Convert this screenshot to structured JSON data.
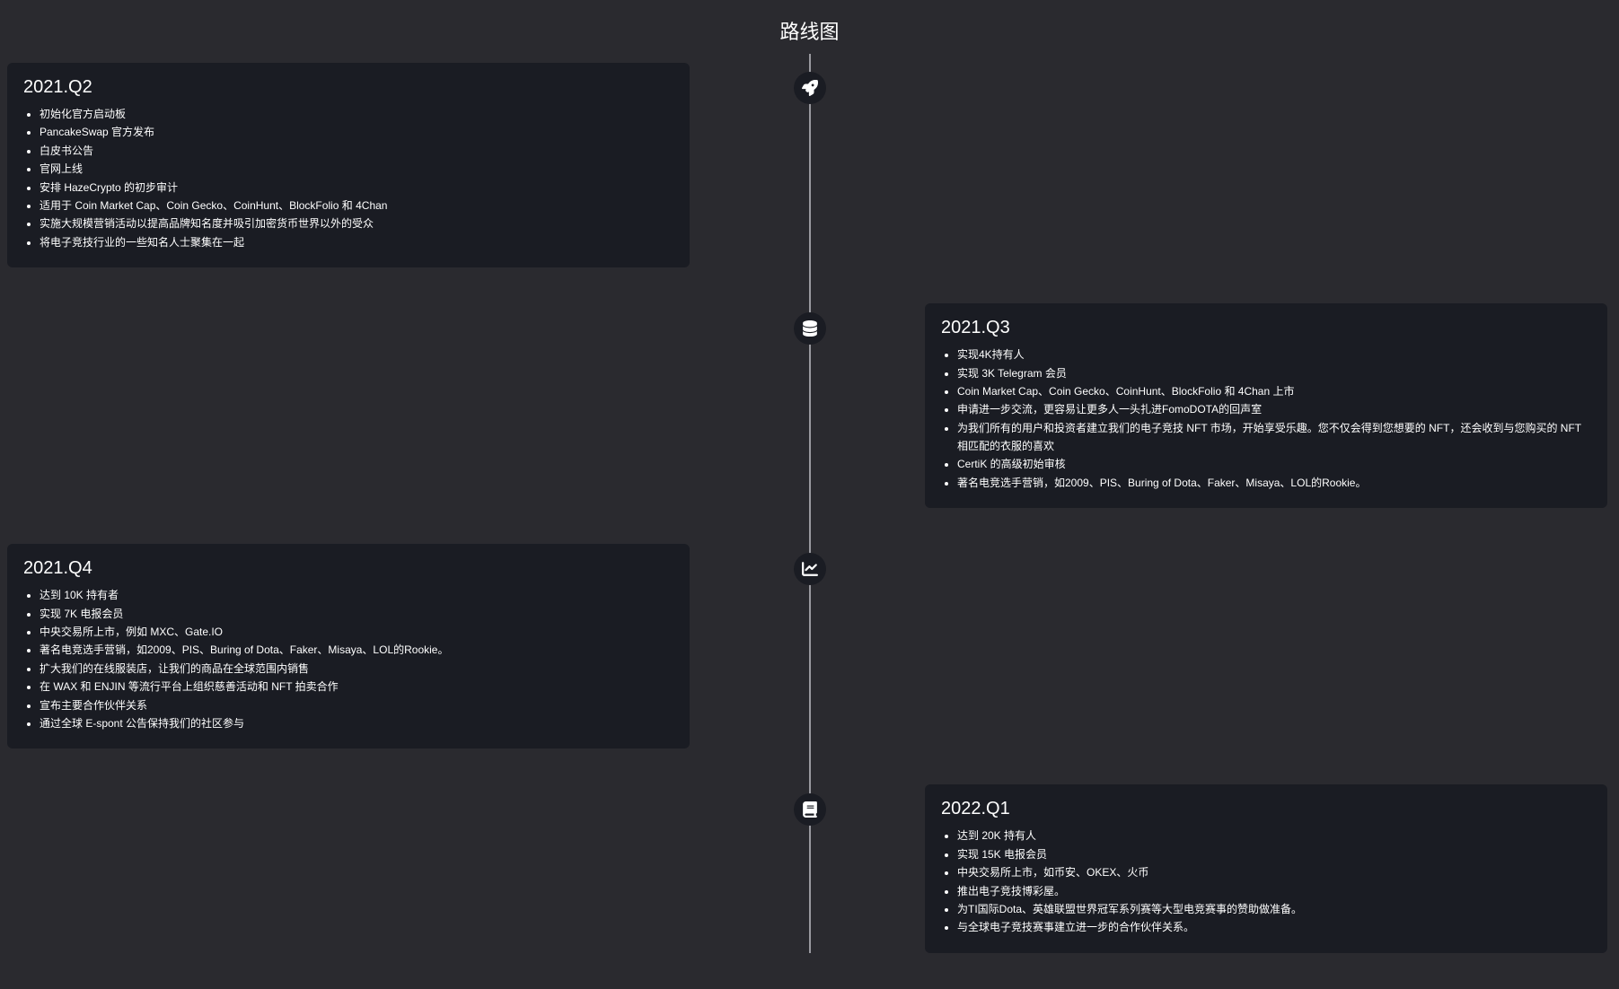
{
  "page_title": "路线图",
  "colors": {
    "background": "#2a2a2f",
    "card_background": "#1a1c23",
    "icon_background": "#1a1c23",
    "text": "#ffffff",
    "line": "#9a9aa0"
  },
  "timeline": [
    {
      "side": "left",
      "icon": "rocket",
      "title": "2021.Q2",
      "items": [
        "初始化官方启动板",
        "PancakeSwap 官方发布",
        "白皮书公告",
        "官网上线",
        "安排 HazeCrypto 的初步审计",
        "适用于 Coin Market Cap、Coin Gecko、CoinHunt、BlockFolio 和 4Chan",
        "实施大规模营销活动以提高品牌知名度并吸引加密货币世界以外的受众",
        "将电子竞技行业的一些知名人士聚集在一起"
      ]
    },
    {
      "side": "right",
      "icon": "database",
      "title": "2021.Q3",
      "items": [
        "实现4K持有人",
        "实现 3K Telegram 会员",
        "Coin Market Cap、Coin Gecko、CoinHunt、BlockFolio 和 4Chan 上市",
        "申请进一步交流，更容易让更多人一头扎进FomoDOTA的回声室",
        "为我们所有的用户和投资者建立我们的电子竞技 NFT 市场，开始享受乐趣。您不仅会得到您想要的 NFT，还会收到与您购买的 NFT 相匹配的衣服的喜欢",
        "CertiK 的高级初始审核",
        "著名电竞选手营销，如2009、PIS、Buring of Dota、Faker、Misaya、LOL的Rookie。"
      ]
    },
    {
      "side": "left",
      "icon": "chart",
      "title": "2021.Q4",
      "items": [
        "达到 10K 持有者",
        "实现 7K 电报会员",
        "中央交易所上市，例如 MXC、Gate.IO",
        "著名电竞选手营销，如2009、PIS、Buring of Dota、Faker、Misaya、LOL的Rookie。",
        "扩大我们的在线服装店，让我们的商品在全球范围内销售",
        "在 WAX 和 ENJIN 等流行平台上组织慈善活动和 NFT 拍卖合作",
        "宣布主要合作伙伴关系",
        "通过全球 E-spont 公告保持我们的社区参与"
      ]
    },
    {
      "side": "right",
      "icon": "book",
      "title": "2022.Q1",
      "items": [
        "达到 20K 持有人",
        "实现 15K 电报会员",
        "中央交易所上市，如币安、OKEX、火币",
        "推出电子竞技博彩屋。",
        "为TI国际Dota、英雄联盟世界冠军系列赛等大型电竞赛事的赞助做准备。",
        "与全球电子竞技赛事建立进一步的合作伙伴关系。"
      ]
    }
  ]
}
